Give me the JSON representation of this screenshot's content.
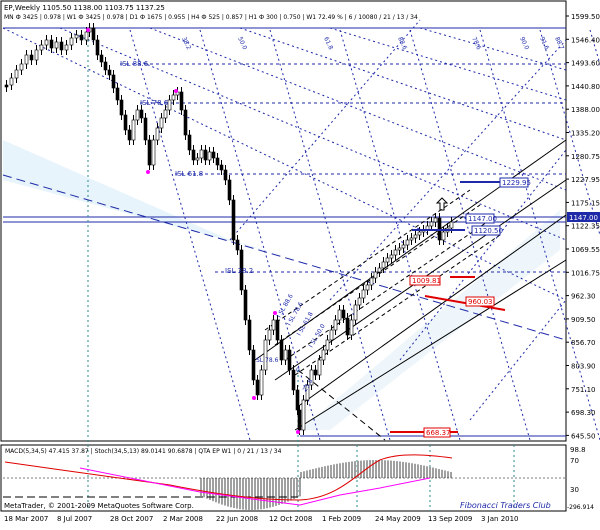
{
  "header": {
    "line1": "EP,Weekly  1105.50 1138.00 1103.75 1137.25",
    "line2": "MN Ф 3425 | 0.978 | W1 Ф 3425 | 0.978 | D1 Ф 1675 | 0.955 | H4 Ф 525 | 0.857 | H1 Ф 300 | 0.750 | W1 72.49 % | 6 / 10080 / 21 / 13 / 34"
  },
  "price_axis": {
    "ticks": [
      "1599.50",
      "1546.40",
      "1493.60",
      "1440.80",
      "1388.00",
      "1335.20",
      "1280.75",
      "1227.95",
      "1175.15",
      "1122.35",
      "1069.55",
      "1016.75",
      "962.30",
      "909.50",
      "856.70",
      "803.90",
      "751.10",
      "698.30",
      "645.50"
    ],
    "current_price_label": "1147.00"
  },
  "time_axis": {
    "labels": [
      "18 Mar 2007",
      "8 Jul 2007",
      "28 Oct 2007",
      "2 Mar 2008",
      "22 Jun 2008",
      "12 Oct 2008",
      "1 Feb 2009",
      "24 May 2009",
      "13 Sep 2009",
      "3 Jan 2010"
    ]
  },
  "level_labels": {
    "isl_886": "ISL 88.6",
    "isl_786": "ISL 78.6",
    "isl_618": "ISL 61.8",
    "isl_382": "ISL 38.2",
    "channel": [
      "I SL 88.6",
      "I SL 78.6",
      "I SL 61.8",
      "I SL 50.0"
    ],
    "small_1": "0",
    "small_2": "23.6",
    "small_3": "SL 78.6"
  },
  "fan_labels": [
    "38.2",
    "50.0",
    "61.8",
    "88.6",
    "78.6",
    "90.0",
    "91.6",
    "88.7"
  ],
  "boxes": {
    "b1229": "1229.95",
    "b1147": "1147.00",
    "b1120": "1120.50",
    "b1009": "1009.81",
    "b960": "960.03",
    "b669": "668.37"
  },
  "indicator": {
    "title": "MACD(5,34,5) 47.415 37.87 | Stoch(34,5,13) 89.0141 90.6878 | QTA EP W1 | 0 / 21 / 13 / 34",
    "axis": [
      "98.8",
      "70",
      "30",
      "-296.914"
    ]
  },
  "footer": {
    "copyright": "MetaTrader, © 2001-2009 MetaQuotes Software Corp.",
    "club": "Fibonacci Traders Club"
  },
  "colors": {
    "candles": "#000000",
    "fib_lines": "#1f2aa8",
    "channel": "#000000",
    "red_line": "#e00000",
    "macd_hist": "#a0a0a0",
    "macd_signal": "#e00000",
    "stoch_line": "#ff00ff",
    "teal_verticals": "#2a8a8a"
  }
}
